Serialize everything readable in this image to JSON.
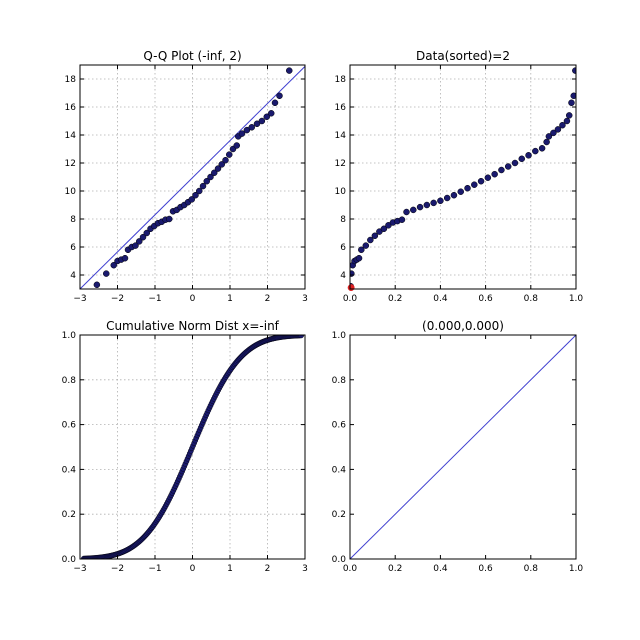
{
  "colors": {
    "marker": "#1a1a6e",
    "marker_edge": "#000000",
    "line": "#4040d0",
    "highlight": "#e02020",
    "background": "#ffffff"
  },
  "chart_data": [
    {
      "type": "scatter",
      "title": "Q-Q Plot (-inf, 2)",
      "xlim": [
        -3,
        3
      ],
      "ylim": [
        3,
        19
      ],
      "xticks": [
        -3,
        -2,
        -1,
        0,
        1,
        2,
        3
      ],
      "yticks": [
        4,
        6,
        8,
        10,
        12,
        14,
        16,
        18
      ],
      "xtick_labels": [
        "−3",
        "−2",
        "−1",
        "0",
        "1",
        "2",
        "3"
      ],
      "ytick_labels": [
        "4",
        "6",
        "8",
        "10",
        "12",
        "14",
        "16",
        "18"
      ],
      "grid": true,
      "reference_line": {
        "x": [
          -3,
          3
        ],
        "y": [
          3.0,
          18.9
        ]
      },
      "points": [
        [
          -2.55,
          3.3
        ],
        [
          -2.3,
          4.1
        ],
        [
          -2.1,
          4.7
        ],
        [
          -2.0,
          5.0
        ],
        [
          -1.9,
          5.1
        ],
        [
          -1.8,
          5.2
        ],
        [
          -1.72,
          5.8
        ],
        [
          -1.62,
          6.0
        ],
        [
          -1.52,
          6.1
        ],
        [
          -1.42,
          6.4
        ],
        [
          -1.32,
          6.7
        ],
        [
          -1.22,
          7.0
        ],
        [
          -1.12,
          7.3
        ],
        [
          -1.02,
          7.5
        ],
        [
          -0.92,
          7.7
        ],
        [
          -0.82,
          7.8
        ],
        [
          -0.72,
          7.95
        ],
        [
          -0.62,
          8.0
        ],
        [
          -0.52,
          8.55
        ],
        [
          -0.42,
          8.65
        ],
        [
          -0.32,
          8.85
        ],
        [
          -0.22,
          9.0
        ],
        [
          -0.12,
          9.2
        ],
        [
          -0.02,
          9.4
        ],
        [
          0.08,
          9.7
        ],
        [
          0.18,
          10.0
        ],
        [
          0.28,
          10.35
        ],
        [
          0.38,
          10.7
        ],
        [
          0.48,
          11.0
        ],
        [
          0.58,
          11.3
        ],
        [
          0.68,
          11.6
        ],
        [
          0.78,
          11.9
        ],
        [
          0.88,
          12.2
        ],
        [
          0.98,
          12.6
        ],
        [
          1.08,
          13.0
        ],
        [
          1.18,
          13.25
        ],
        [
          1.22,
          13.9
        ],
        [
          1.32,
          14.1
        ],
        [
          1.45,
          14.35
        ],
        [
          1.58,
          14.55
        ],
        [
          1.72,
          14.8
        ],
        [
          1.85,
          15.0
        ],
        [
          1.98,
          15.3
        ],
        [
          2.1,
          15.55
        ],
        [
          2.2,
          16.3
        ],
        [
          2.32,
          16.8
        ],
        [
          2.58,
          18.6
        ]
      ]
    },
    {
      "type": "scatter",
      "title": "Data(sorted)=2",
      "xlim": [
        0,
        1
      ],
      "ylim": [
        3,
        19
      ],
      "xticks": [
        0,
        0.2,
        0.4,
        0.6,
        0.8,
        1.0
      ],
      "yticks": [
        4,
        6,
        8,
        10,
        12,
        14,
        16,
        18
      ],
      "xtick_labels": [
        "0.0",
        "0.2",
        "0.4",
        "0.6",
        "0.8",
        "1.0"
      ],
      "ytick_labels": [
        "4",
        "6",
        "8",
        "10",
        "12",
        "14",
        "16",
        "18"
      ],
      "grid": true,
      "highlight_point": [
        0.005,
        3.1
      ],
      "points": [
        [
          0.003,
          3.2
        ],
        [
          0.006,
          4.1
        ],
        [
          0.012,
          4.7
        ],
        [
          0.02,
          5.0
        ],
        [
          0.03,
          5.1
        ],
        [
          0.04,
          5.2
        ],
        [
          0.05,
          5.8
        ],
        [
          0.07,
          6.1
        ],
        [
          0.09,
          6.5
        ],
        [
          0.11,
          6.8
        ],
        [
          0.13,
          7.1
        ],
        [
          0.15,
          7.3
        ],
        [
          0.17,
          7.55
        ],
        [
          0.19,
          7.75
        ],
        [
          0.21,
          7.85
        ],
        [
          0.23,
          7.95
        ],
        [
          0.25,
          8.5
        ],
        [
          0.28,
          8.65
        ],
        [
          0.31,
          8.85
        ],
        [
          0.34,
          9.0
        ],
        [
          0.37,
          9.15
        ],
        [
          0.4,
          9.3
        ],
        [
          0.43,
          9.5
        ],
        [
          0.46,
          9.7
        ],
        [
          0.49,
          9.95
        ],
        [
          0.52,
          10.2
        ],
        [
          0.55,
          10.45
        ],
        [
          0.58,
          10.7
        ],
        [
          0.61,
          10.95
        ],
        [
          0.64,
          11.2
        ],
        [
          0.67,
          11.5
        ],
        [
          0.7,
          11.75
        ],
        [
          0.73,
          12.0
        ],
        [
          0.76,
          12.3
        ],
        [
          0.79,
          12.55
        ],
        [
          0.82,
          12.85
        ],
        [
          0.85,
          13.05
        ],
        [
          0.87,
          13.5
        ],
        [
          0.88,
          13.9
        ],
        [
          0.9,
          14.15
        ],
        [
          0.92,
          14.4
        ],
        [
          0.94,
          14.7
        ],
        [
          0.96,
          15.0
        ],
        [
          0.97,
          15.4
        ],
        [
          0.98,
          16.3
        ],
        [
          0.99,
          16.8
        ],
        [
          0.997,
          18.6
        ]
      ]
    },
    {
      "type": "scatter",
      "title": "Cumulative Norm Dist x=-inf",
      "xlim": [
        -3,
        3
      ],
      "ylim": [
        0,
        1
      ],
      "xticks": [
        -3,
        -2,
        -1,
        0,
        1,
        2,
        3
      ],
      "yticks": [
        0,
        0.2,
        0.4,
        0.6,
        0.8,
        1.0
      ],
      "xtick_labels": [
        "−3",
        "−2",
        "−1",
        "0",
        "1",
        "2",
        "3"
      ],
      "ytick_labels": [
        "0.0",
        "0.2",
        "0.4",
        "0.6",
        "0.8",
        "1.0"
      ],
      "grid": true,
      "series": [
        {
          "function": "standard normal CDF",
          "x_range": [
            -2.9,
            2.9
          ],
          "count": 200
        }
      ]
    },
    {
      "type": "line",
      "title": "(0.000,0.000)",
      "xlim": [
        0,
        1
      ],
      "ylim": [
        0,
        1
      ],
      "xticks": [
        0,
        0.2,
        0.4,
        0.6,
        0.8,
        1.0
      ],
      "yticks": [
        0,
        0.2,
        0.4,
        0.6,
        0.8,
        1.0
      ],
      "xtick_labels": [
        "0.0",
        "0.2",
        "0.4",
        "0.6",
        "0.8",
        "1.0"
      ],
      "ytick_labels": [
        "0.0",
        "0.2",
        "0.4",
        "0.6",
        "0.8",
        "1.0"
      ],
      "grid": false,
      "line": {
        "x": [
          0,
          1
        ],
        "y": [
          0,
          1
        ]
      }
    }
  ]
}
